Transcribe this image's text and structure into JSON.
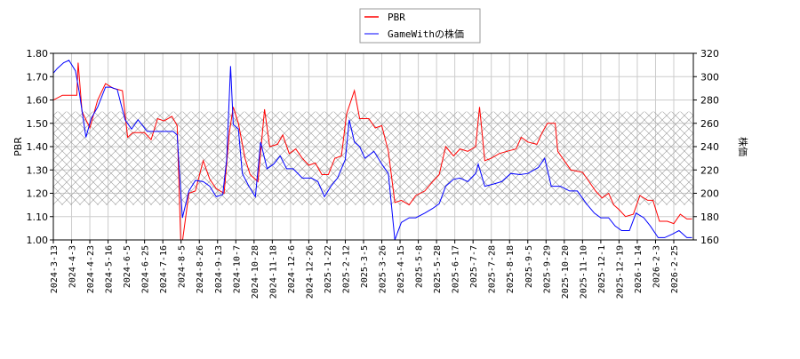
{
  "chart_data": {
    "type": "line",
    "title": "",
    "x_unit": "trading-day index from 2024-3-13",
    "x_range": [
      0,
      491
    ],
    "x_tick_step": 14,
    "x_tick_labels": [
      "2024-3-13",
      "2024-4-3",
      "2024-4-23",
      "2024-5-16",
      "2024-6-5",
      "2024-6-25",
      "2024-7-16",
      "2024-8-5",
      "2024-8-26",
      "2024-9-13",
      "2024-10-7",
      "2024-10-28",
      "2024-11-18",
      "2024-12-6",
      "2024-12-26",
      "2025-1-22",
      "2025-2-12",
      "2025-3-5",
      "2025-3-26",
      "2025-4-15",
      "2025-5-8",
      "2025-5-28",
      "2025-6-17",
      "2025-7-7",
      "2025-7-28",
      "2025-8-18",
      "2025-9-5",
      "2025-9-29",
      "2025-10-20",
      "2025-11-10",
      "2025-12-1",
      "2025-12-19",
      "2026-1-14",
      "2026-2-3",
      "2026-2-25"
    ],
    "ylabel": "PBR",
    "ylim": [
      1.0,
      1.8
    ],
    "y_ticks": [
      "1.00",
      "1.10",
      "1.20",
      "1.30",
      "1.40",
      "1.50",
      "1.60",
      "1.70",
      "1.80"
    ],
    "y2label": "株価",
    "y2lim": [
      160,
      320
    ],
    "y2_ticks": [
      "160",
      "180",
      "200",
      "220",
      "240",
      "260",
      "280",
      "300",
      "320"
    ],
    "band": [
      1.15,
      1.55
    ],
    "grid": true,
    "legend": {
      "placement": "top-center",
      "entries": [
        "PBR",
        "GameWithの株価"
      ]
    },
    "series": [
      {
        "name": "PBR",
        "axis": "left",
        "color": "#ff0000",
        "points": [
          [
            0,
            1.6
          ],
          [
            7,
            1.62
          ],
          [
            14,
            1.62
          ],
          [
            18,
            1.62
          ],
          [
            19,
            1.76
          ],
          [
            22,
            1.55
          ],
          [
            28,
            1.48
          ],
          [
            34,
            1.6
          ],
          [
            40,
            1.67
          ],
          [
            46,
            1.65
          ],
          [
            53,
            1.64
          ],
          [
            57,
            1.44
          ],
          [
            61,
            1.46
          ],
          [
            70,
            1.46
          ],
          [
            75,
            1.43
          ],
          [
            80,
            1.52
          ],
          [
            85,
            1.51
          ],
          [
            91,
            1.53
          ],
          [
            95,
            1.49
          ],
          [
            98,
            0.95
          ],
          [
            104,
            1.2
          ],
          [
            109,
            1.21
          ],
          [
            115,
            1.34
          ],
          [
            120,
            1.26
          ],
          [
            125,
            1.22
          ],
          [
            131,
            1.2
          ],
          [
            135,
            1.46
          ],
          [
            138,
            1.57
          ],
          [
            142,
            1.5
          ],
          [
            147,
            1.35
          ],
          [
            151,
            1.28
          ],
          [
            157,
            1.25
          ],
          [
            162,
            1.56
          ],
          [
            166,
            1.4
          ],
          [
            172,
            1.41
          ],
          [
            176,
            1.45
          ],
          [
            181,
            1.37
          ],
          [
            186,
            1.39
          ],
          [
            191,
            1.35
          ],
          [
            196,
            1.32
          ],
          [
            201,
            1.33
          ],
          [
            206,
            1.28
          ],
          [
            211,
            1.28
          ],
          [
            216,
            1.35
          ],
          [
            221,
            1.36
          ],
          [
            225,
            1.54
          ],
          [
            231,
            1.64
          ],
          [
            235,
            1.52
          ],
          [
            242,
            1.52
          ],
          [
            247,
            1.48
          ],
          [
            252,
            1.49
          ],
          [
            257,
            1.38
          ],
          [
            262,
            1.16
          ],
          [
            267,
            1.17
          ],
          [
            273,
            1.15
          ],
          [
            278,
            1.19
          ],
          [
            285,
            1.21
          ],
          [
            291,
            1.25
          ],
          [
            296,
            1.28
          ],
          [
            301,
            1.4
          ],
          [
            307,
            1.36
          ],
          [
            312,
            1.39
          ],
          [
            318,
            1.38
          ],
          [
            324,
            1.4
          ],
          [
            327,
            1.57
          ],
          [
            331,
            1.34
          ],
          [
            336,
            1.35
          ],
          [
            342,
            1.37
          ],
          [
            348,
            1.38
          ],
          [
            355,
            1.39
          ],
          [
            359,
            1.44
          ],
          [
            364,
            1.42
          ],
          [
            371,
            1.41
          ],
          [
            375,
            1.46
          ],
          [
            379,
            1.5
          ],
          [
            385,
            1.5
          ],
          [
            387,
            1.38
          ],
          [
            392,
            1.34
          ],
          [
            397,
            1.3
          ],
          [
            406,
            1.29
          ],
          [
            411,
            1.25
          ],
          [
            416,
            1.21
          ],
          [
            421,
            1.18
          ],
          [
            426,
            1.2
          ],
          [
            430,
            1.15
          ],
          [
            434,
            1.13
          ],
          [
            439,
            1.1
          ],
          [
            445,
            1.11
          ],
          [
            450,
            1.19
          ],
          [
            456,
            1.17
          ],
          [
            460,
            1.17
          ],
          [
            465,
            1.08
          ],
          [
            471,
            1.08
          ],
          [
            476,
            1.07
          ],
          [
            481,
            1.11
          ],
          [
            486,
            1.09
          ],
          [
            490,
            1.09
          ]
        ]
      },
      {
        "name": "GameWithの株価",
        "axis": "right",
        "color": "#0000ff",
        "points": [
          [
            0,
            303
          ],
          [
            3,
            307
          ],
          [
            8,
            312
          ],
          [
            12,
            314
          ],
          [
            17,
            305
          ],
          [
            20,
            286
          ],
          [
            25,
            248
          ],
          [
            29,
            264
          ],
          [
            34,
            274
          ],
          [
            40,
            291
          ],
          [
            44,
            291
          ],
          [
            49,
            289
          ],
          [
            55,
            263
          ],
          [
            60,
            255
          ],
          [
            65,
            263
          ],
          [
            72,
            253
          ],
          [
            78,
            253
          ],
          [
            85,
            253
          ],
          [
            92,
            253
          ],
          [
            95,
            250
          ],
          [
            99,
            179
          ],
          [
            104,
            202
          ],
          [
            109,
            211
          ],
          [
            115,
            210
          ],
          [
            120,
            206
          ],
          [
            125,
            197
          ],
          [
            130,
            199
          ],
          [
            133,
            229
          ],
          [
            136,
            309
          ],
          [
            138,
            259
          ],
          [
            142,
            255
          ],
          [
            145,
            217
          ],
          [
            150,
            206
          ],
          [
            155,
            197
          ],
          [
            159,
            244
          ],
          [
            164,
            221
          ],
          [
            169,
            225
          ],
          [
            174,
            232
          ],
          [
            179,
            221
          ],
          [
            184,
            221
          ],
          [
            191,
            213
          ],
          [
            198,
            213
          ],
          [
            203,
            210
          ],
          [
            208,
            197
          ],
          [
            213,
            206
          ],
          [
            218,
            213
          ],
          [
            224,
            229
          ],
          [
            227,
            263
          ],
          [
            231,
            244
          ],
          [
            235,
            240
          ],
          [
            239,
            230
          ],
          [
            246,
            236
          ],
          [
            252,
            225
          ],
          [
            257,
            217
          ],
          [
            262,
            160
          ],
          [
            267,
            175
          ],
          [
            273,
            179
          ],
          [
            278,
            179
          ],
          [
            285,
            183
          ],
          [
            291,
            187
          ],
          [
            296,
            191
          ],
          [
            301,
            206
          ],
          [
            307,
            212
          ],
          [
            312,
            213
          ],
          [
            318,
            210
          ],
          [
            324,
            217
          ],
          [
            326,
            225
          ],
          [
            331,
            206
          ],
          [
            338,
            208
          ],
          [
            344,
            210
          ],
          [
            351,
            217
          ],
          [
            358,
            216
          ],
          [
            364,
            217
          ],
          [
            372,
            222
          ],
          [
            377,
            230
          ],
          [
            382,
            206
          ],
          [
            389,
            206
          ],
          [
            396,
            202
          ],
          [
            402,
            202
          ],
          [
            409,
            191
          ],
          [
            415,
            183
          ],
          [
            420,
            179
          ],
          [
            426,
            179
          ],
          [
            431,
            172
          ],
          [
            436,
            168
          ],
          [
            442,
            168
          ],
          [
            447,
            183
          ],
          [
            453,
            179
          ],
          [
            458,
            172
          ],
          [
            464,
            162
          ],
          [
            469,
            162
          ],
          [
            475,
            165
          ],
          [
            480,
            168
          ],
          [
            486,
            162
          ],
          [
            490,
            162
          ]
        ]
      }
    ]
  }
}
